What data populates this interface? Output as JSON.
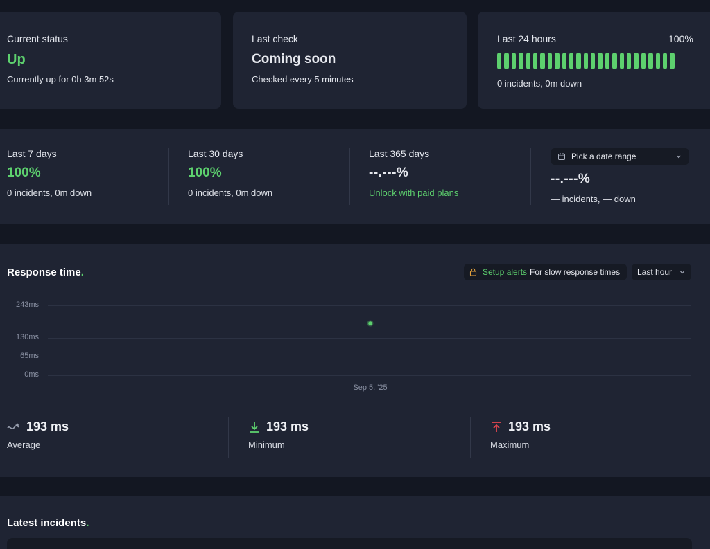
{
  "status_card": {
    "label": "Current status",
    "value": "Up",
    "sub": "Currently up for 0h 3m 52s"
  },
  "check_card": {
    "label": "Last check",
    "value": "Coming soon",
    "sub": "Checked every 5 minutes"
  },
  "day_card": {
    "label": "Last 24 hours",
    "percent": "100%",
    "sub": "0 incidents, 0m down",
    "bar_count": 25,
    "bar_color": "#5dd06e"
  },
  "uptime": {
    "d7": {
      "label": "Last 7 days",
      "value": "100%",
      "sub": "0 incidents, 0m down"
    },
    "d30": {
      "label": "Last 30 days",
      "value": "100%",
      "sub": "0 incidents, 0m down"
    },
    "d365": {
      "label": "Last 365 days",
      "value": "--.---%",
      "link": "Unlock with paid plans"
    },
    "custom": {
      "picker_label": "Pick a date range",
      "value": "--.---%",
      "sub": "— incidents, — down"
    }
  },
  "response": {
    "title": "Response time",
    "title_dot": ".",
    "alerts_link": "Setup alerts",
    "alerts_text": "For slow response times",
    "range_select": "Last hour"
  },
  "chart_data": {
    "type": "scatter",
    "title": "Response time",
    "y_ticks": [
      "243ms",
      "130ms",
      "65ms",
      "0ms"
    ],
    "ylim": [
      0,
      260
    ],
    "x_label_tick": "Sep 5, '25",
    "points": [
      {
        "x": "Sep 5, '25",
        "y": 193
      }
    ],
    "color": "#5dd06e"
  },
  "stats": {
    "average": {
      "value": "193 ms",
      "label": "Average"
    },
    "minimum": {
      "value": "193 ms",
      "label": "Minimum"
    },
    "maximum": {
      "value": "193 ms",
      "label": "Maximum"
    }
  },
  "incidents": {
    "title": "Latest incidents",
    "title_dot": "."
  },
  "colors": {
    "accent": "#5dd06e",
    "danger": "#e0464f",
    "warning": "#e6a23c",
    "card": "#1f2433",
    "background": "#131722"
  }
}
